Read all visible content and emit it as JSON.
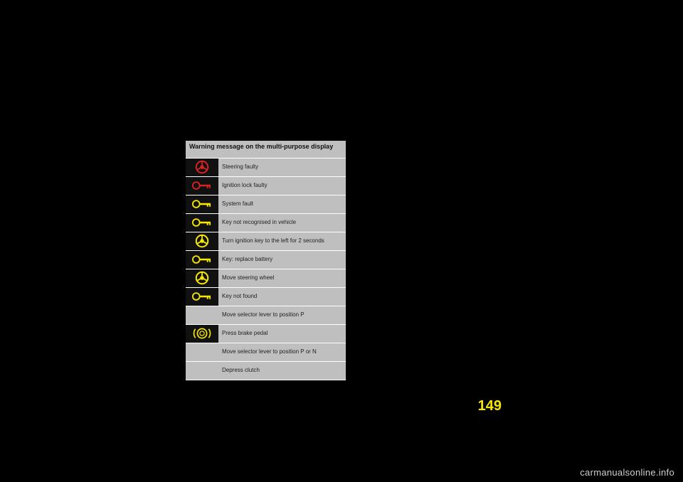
{
  "header": {
    "title": "Warning message on the multi-purpose display"
  },
  "colors": {
    "red": "#d62222",
    "yellow": "#f7e600",
    "black": "#111111",
    "grey": "#bfbfbf"
  },
  "rows": [
    {
      "icon": "steering",
      "icon_color": "#d62222",
      "msg": "Steering faulty"
    },
    {
      "icon": "key",
      "icon_color": "#d62222",
      "msg": "Ignition lock faulty"
    },
    {
      "icon": "key",
      "icon_color": "#f7e600",
      "msg": "System fault"
    },
    {
      "icon": "key",
      "icon_color": "#f7e600",
      "msg": "Key not recognised in vehicle"
    },
    {
      "icon": "steering",
      "icon_color": "#f7e600",
      "msg": "Turn ignition key to the left for 2 seconds"
    },
    {
      "icon": "key",
      "icon_color": "#f7e600",
      "msg": "Key: replace battery"
    },
    {
      "icon": "steering",
      "icon_color": "#f7e600",
      "msg": "Move steering wheel"
    },
    {
      "icon": "key",
      "icon_color": "#f7e600",
      "msg": "Key not found"
    },
    {
      "icon": "",
      "icon_color": "",
      "msg": "Move selector lever to position P"
    },
    {
      "icon": "brake",
      "icon_color": "#f7e600",
      "msg": "Press brake pedal"
    },
    {
      "icon": "",
      "icon_color": "",
      "msg": "Move selector lever to position P or N"
    },
    {
      "icon": "",
      "icon_color": "",
      "msg": "Depress clutch"
    }
  ],
  "page_number": "149",
  "watermark": "carmanualsonline.info"
}
